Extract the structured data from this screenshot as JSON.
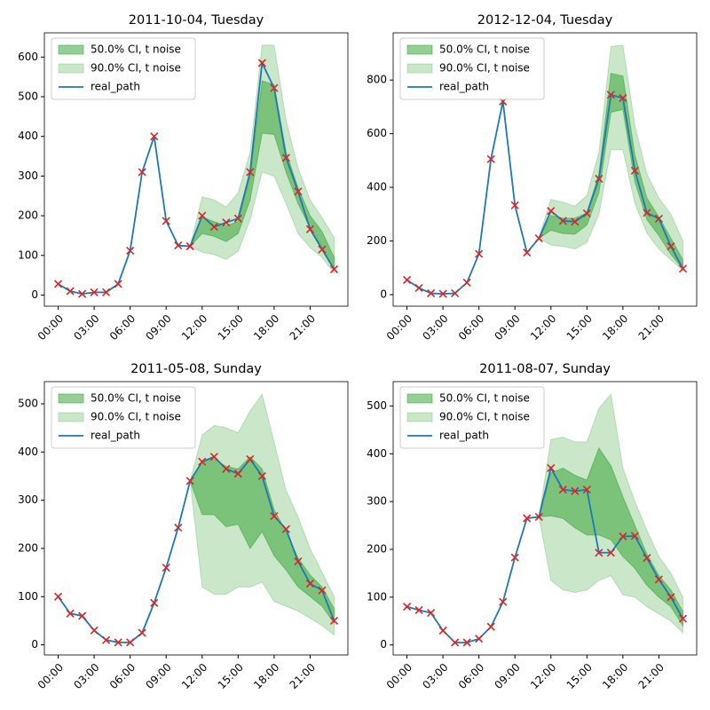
{
  "chart_data": [
    {
      "type": "line",
      "title": "2011-10-04, Tuesday",
      "x": [
        0,
        1,
        2,
        3,
        4,
        5,
        6,
        7,
        8,
        9,
        10,
        11,
        12,
        13,
        14,
        15,
        16,
        17,
        18,
        19,
        20,
        21,
        22,
        23
      ],
      "xlim": [
        -1.15,
        24.15
      ],
      "xticks": [
        {
          "value": 0,
          "label": "00:00"
        },
        {
          "value": 3,
          "label": "03:00"
        },
        {
          "value": 6,
          "label": "06:00"
        },
        {
          "value": 9,
          "label": "09:00"
        },
        {
          "value": 12,
          "label": "12:00"
        },
        {
          "value": 15,
          "label": "15:00"
        },
        {
          "value": 18,
          "label": "18:00"
        },
        {
          "value": 21,
          "label": "21:00"
        }
      ],
      "ylim": [
        -28,
        661
      ],
      "yticks": [
        0,
        100,
        200,
        300,
        400,
        500,
        600
      ],
      "legend": "upper left",
      "bands": [
        {
          "name": "50.0% CI, t noise",
          "color": "#2ca02c",
          "alpha": 0.5,
          "upper": [
            null,
            null,
            null,
            null,
            null,
            null,
            null,
            null,
            null,
            null,
            null,
            123,
            197,
            185,
            175,
            185,
            300,
            540,
            530,
            360,
            270,
            200,
            160,
            95
          ],
          "lower": [
            null,
            null,
            null,
            null,
            null,
            null,
            null,
            null,
            null,
            null,
            null,
            123,
            155,
            148,
            135,
            155,
            240,
            408,
            405,
            310,
            230,
            170,
            120,
            65
          ]
        },
        {
          "name": "90.0% CI, t noise",
          "color": "#2ca02c",
          "alpha": 0.25,
          "upper": [
            null,
            null,
            null,
            null,
            null,
            null,
            null,
            null,
            null,
            null,
            null,
            123,
            248,
            240,
            222,
            258,
            360,
            630,
            630,
            440,
            320,
            240,
            195,
            145
          ],
          "lower": [
            null,
            null,
            null,
            null,
            null,
            null,
            null,
            null,
            null,
            null,
            null,
            123,
            108,
            102,
            90,
            110,
            190,
            310,
            300,
            230,
            155,
            120,
            95,
            55
          ]
        }
      ],
      "series": [
        {
          "name": "real_path",
          "color": "#1f77b4",
          "marker": "x",
          "marker_color": "#d62728",
          "values": [
            28,
            10,
            3,
            7,
            7,
            28,
            112,
            310,
            400,
            187,
            125,
            123,
            200,
            172,
            183,
            193,
            310,
            585,
            522,
            346,
            261,
            166,
            115,
            65
          ]
        }
      ]
    },
    {
      "type": "line",
      "title": "2012-12-04, Tuesday",
      "x": [
        0,
        1,
        2,
        3,
        4,
        5,
        6,
        7,
        8,
        9,
        10,
        11,
        12,
        13,
        14,
        15,
        16,
        17,
        18,
        19,
        20,
        21,
        22,
        23
      ],
      "xlim": [
        -1.15,
        24.15
      ],
      "xticks": [
        {
          "value": 0,
          "label": "00:00"
        },
        {
          "value": 3,
          "label": "03:00"
        },
        {
          "value": 6,
          "label": "06:00"
        },
        {
          "value": 9,
          "label": "09:00"
        },
        {
          "value": 12,
          "label": "12:00"
        },
        {
          "value": 15,
          "label": "15:00"
        },
        {
          "value": 18,
          "label": "18:00"
        },
        {
          "value": 21,
          "label": "21:00"
        }
      ],
      "ylim": [
        -43,
        976
      ],
      "yticks": [
        0,
        200,
        400,
        600,
        800
      ],
      "legend": "upper left",
      "bands": [
        {
          "name": "50.0% CI, t noise",
          "color": "#2ca02c",
          "alpha": 0.5,
          "upper": [
            null,
            null,
            null,
            null,
            null,
            null,
            null,
            null,
            null,
            null,
            null,
            210,
            295,
            285,
            285,
            305,
            450,
            825,
            815,
            520,
            360,
            290,
            210,
            130
          ],
          "lower": [
            null,
            null,
            null,
            null,
            null,
            null,
            null,
            null,
            null,
            null,
            null,
            210,
            240,
            228,
            225,
            260,
            380,
            680,
            690,
            420,
            280,
            220,
            150,
            95
          ]
        },
        {
          "name": "90.0% CI, t noise",
          "color": "#2ca02c",
          "alpha": 0.25,
          "upper": [
            null,
            null,
            null,
            null,
            null,
            null,
            null,
            null,
            null,
            null,
            null,
            210,
            355,
            345,
            330,
            370,
            530,
            925,
            930,
            630,
            450,
            360,
            300,
            200
          ],
          "lower": [
            null,
            null,
            null,
            null,
            null,
            null,
            null,
            null,
            null,
            null,
            null,
            210,
            185,
            180,
            170,
            195,
            300,
            540,
            540,
            340,
            230,
            170,
            130,
            90
          ]
        }
      ],
      "series": [
        {
          "name": "real_path",
          "color": "#1f77b4",
          "marker": "x",
          "marker_color": "#d62728",
          "values": [
            55,
            25,
            5,
            3,
            5,
            45,
            152,
            505,
            720,
            333,
            157,
            210,
            312,
            275,
            272,
            303,
            432,
            745,
            733,
            462,
            305,
            283,
            180,
            97
          ]
        }
      ]
    },
    {
      "type": "line",
      "title": "2011-05-08, Sunday",
      "x": [
        0,
        1,
        2,
        3,
        4,
        5,
        6,
        7,
        8,
        9,
        10,
        11,
        12,
        13,
        14,
        15,
        16,
        17,
        18,
        19,
        20,
        21,
        22,
        23
      ],
      "xlim": [
        -1.15,
        24.15
      ],
      "xticks": [
        {
          "value": 0,
          "label": "00:00"
        },
        {
          "value": 3,
          "label": "03:00"
        },
        {
          "value": 6,
          "label": "06:00"
        },
        {
          "value": 9,
          "label": "09:00"
        },
        {
          "value": 12,
          "label": "12:00"
        },
        {
          "value": 15,
          "label": "15:00"
        },
        {
          "value": 18,
          "label": "18:00"
        },
        {
          "value": 21,
          "label": "21:00"
        }
      ],
      "ylim": [
        -21,
        546
      ],
      "yticks": [
        0,
        100,
        200,
        300,
        400,
        500
      ],
      "legend": "upper left",
      "bands": [
        {
          "name": "50.0% CI, t noise",
          "color": "#2ca02c",
          "alpha": 0.5,
          "upper": [
            null,
            null,
            null,
            null,
            null,
            null,
            null,
            null,
            null,
            null,
            null,
            340,
            380,
            385,
            370,
            365,
            390,
            365,
            280,
            235,
            180,
            145,
            120,
            75
          ],
          "lower": [
            null,
            null,
            null,
            null,
            null,
            null,
            null,
            null,
            null,
            null,
            null,
            340,
            270,
            270,
            245,
            250,
            200,
            235,
            185,
            155,
            120,
            100,
            80,
            45
          ]
        },
        {
          "name": "90.0% CI, t noise",
          "color": "#2ca02c",
          "alpha": 0.25,
          "upper": [
            null,
            null,
            null,
            null,
            null,
            null,
            null,
            null,
            null,
            null,
            null,
            340,
            435,
            455,
            450,
            440,
            485,
            520,
            420,
            320,
            265,
            200,
            150,
            100
          ],
          "lower": [
            null,
            null,
            null,
            null,
            null,
            null,
            null,
            null,
            null,
            null,
            null,
            340,
            120,
            105,
            105,
            120,
            120,
            130,
            90,
            80,
            70,
            55,
            40,
            20
          ]
        }
      ],
      "series": [
        {
          "name": "real_path",
          "color": "#1f77b4",
          "marker": "x",
          "marker_color": "#d62728",
          "values": [
            100,
            65,
            60,
            30,
            10,
            5,
            5,
            25,
            87,
            160,
            243,
            340,
            380,
            390,
            365,
            355,
            385,
            350,
            267,
            240,
            173,
            127,
            113,
            50
          ]
        }
      ]
    },
    {
      "type": "line",
      "title": "2011-08-07, Sunday",
      "x": [
        0,
        1,
        2,
        3,
        4,
        5,
        6,
        7,
        8,
        9,
        10,
        11,
        12,
        13,
        14,
        15,
        16,
        17,
        18,
        19,
        20,
        21,
        22,
        23
      ],
      "xlim": [
        -1.15,
        24.15
      ],
      "xticks": [
        {
          "value": 0,
          "label": "00:00"
        },
        {
          "value": 3,
          "label": "03:00"
        },
        {
          "value": 6,
          "label": "06:00"
        },
        {
          "value": 9,
          "label": "09:00"
        },
        {
          "value": 12,
          "label": "12:00"
        },
        {
          "value": 15,
          "label": "15:00"
        },
        {
          "value": 18,
          "label": "18:00"
        },
        {
          "value": 21,
          "label": "21:00"
        }
      ],
      "ylim": [
        -21,
        551
      ],
      "yticks": [
        0,
        100,
        200,
        300,
        400,
        500
      ],
      "legend": "upper left",
      "bands": [
        {
          "name": "50.0% CI, t noise",
          "color": "#2ca02c",
          "alpha": 0.5,
          "upper": [
            null,
            null,
            null,
            null,
            null,
            null,
            null,
            null,
            null,
            null,
            null,
            268,
            360,
            370,
            355,
            345,
            412,
            375,
            310,
            250,
            190,
            145,
            115,
            70
          ],
          "lower": [
            null,
            null,
            null,
            null,
            null,
            null,
            null,
            null,
            null,
            null,
            null,
            268,
            270,
            265,
            245,
            230,
            230,
            220,
            185,
            160,
            125,
            100,
            80,
            40
          ]
        },
        {
          "name": "90.0% CI, t noise",
          "color": "#2ca02c",
          "alpha": 0.25,
          "upper": [
            null,
            null,
            null,
            null,
            null,
            null,
            null,
            null,
            null,
            null,
            null,
            268,
            430,
            435,
            425,
            425,
            495,
            525,
            370,
            300,
            240,
            185,
            150,
            100
          ],
          "lower": [
            null,
            null,
            null,
            null,
            null,
            null,
            null,
            null,
            null,
            null,
            null,
            268,
            135,
            115,
            110,
            115,
            135,
            145,
            105,
            100,
            80,
            65,
            50,
            25
          ]
        }
      ],
      "series": [
        {
          "name": "real_path",
          "color": "#1f77b4",
          "marker": "x",
          "marker_color": "#d62728",
          "values": [
            80,
            73,
            67,
            30,
            5,
            5,
            13,
            38,
            90,
            183,
            265,
            268,
            370,
            325,
            322,
            325,
            193,
            193,
            227,
            228,
            182,
            137,
            100,
            55
          ]
        }
      ]
    }
  ]
}
